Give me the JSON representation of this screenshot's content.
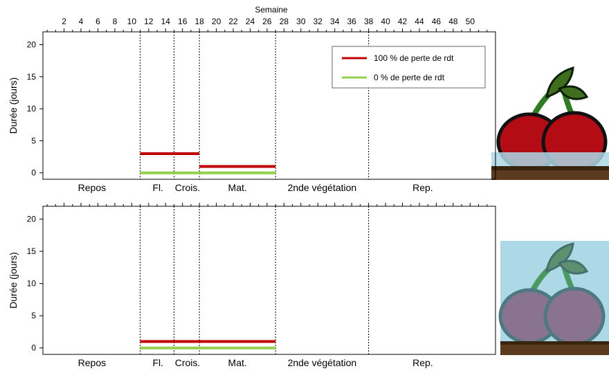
{
  "chart_data": {
    "type": "line",
    "xlabel": "Semaine",
    "ylabel": "Durée (jours)",
    "x_ticks": [
      2,
      4,
      6,
      8,
      10,
      12,
      14,
      16,
      18,
      20,
      22,
      24,
      26,
      28,
      30,
      32,
      34,
      36,
      38,
      40,
      42,
      44,
      46,
      48,
      50
    ],
    "xlim": [
      -0.5,
      53
    ],
    "ylim": [
      -1,
      22
    ],
    "y_ticks": [
      0,
      5,
      10,
      15,
      20
    ],
    "phase_boundaries": [
      11,
      15,
      18,
      27,
      38
    ],
    "phases": [
      {
        "label": "Repos",
        "x": 5.3
      },
      {
        "label": "Fl.",
        "x": 13.1
      },
      {
        "label": "Crois.",
        "x": 16.6
      },
      {
        "label": "Mat.",
        "x": 22.5
      },
      {
        "label": "2nde végétation",
        "x": 32.5
      },
      {
        "label": "Rep.",
        "x": 44.4
      }
    ],
    "legend_placement": "top-right",
    "series_legend": [
      {
        "name": "100 % de perte de rdt",
        "color": "#c00000"
      },
      {
        "name": "0 % de perte de rdt",
        "color": "#92d050"
      }
    ],
    "panels": [
      {
        "series": [
          {
            "name": "100 % de perte de rdt",
            "color": "#c00000",
            "segments": [
              {
                "x0": 11,
                "x1": 18,
                "y": 3
              },
              {
                "x0": 18,
                "x1": 27,
                "y": 1
              }
            ]
          },
          {
            "name": "0 % de perte de rdt",
            "color": "#92d050",
            "segments": [
              {
                "x0": 11,
                "x1": 27,
                "y": 0
              }
            ]
          }
        ]
      },
      {
        "series": [
          {
            "name": "100 % de perte de rdt",
            "color": "#c00000",
            "segments": [
              {
                "x0": 11,
                "x1": 27,
                "y": 1
              }
            ]
          },
          {
            "name": "0 % de perte de rdt",
            "color": "#92d050",
            "segments": [
              {
                "x0": 11,
                "x1": 27,
                "y": 0
              }
            ]
          }
        ]
      }
    ]
  },
  "illustrations": [
    {
      "name": "cherry-illustration-top",
      "icon": "cherries-icon",
      "colors": {
        "fruit": "#c00000",
        "sky": "#add8e6",
        "soil": "#5c3a1e"
      }
    },
    {
      "name": "cherry-illustration-bottom",
      "icon": "cherries-icon",
      "colors": {
        "fruit": "#8a7390",
        "sky": "#add8e6",
        "soil": "#5c3a1e"
      }
    }
  ]
}
